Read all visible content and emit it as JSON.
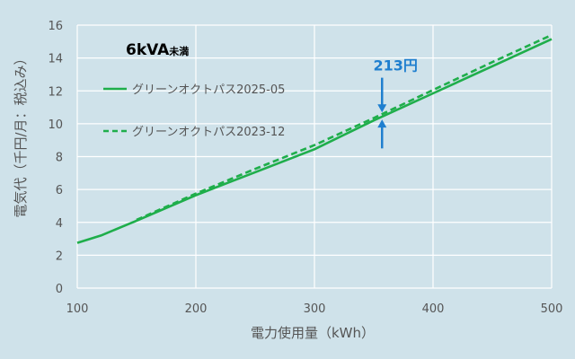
{
  "chart_data": {
    "type": "line",
    "title": "6kVA",
    "title_suffix": "未満",
    "xlabel": "電力使用量（kWh）",
    "ylabel": "電気代（千円/月：税込み）",
    "xlim": [
      100,
      500
    ],
    "ylim": [
      0,
      16
    ],
    "x_ticks": [
      100,
      200,
      300,
      400,
      500
    ],
    "y_ticks": [
      0,
      2,
      4,
      6,
      8,
      10,
      12,
      14,
      16
    ],
    "x_tick_labels": [
      "100",
      "200",
      "300",
      "400",
      "500"
    ],
    "y_tick_labels": [
      "0",
      "2",
      "4",
      "6",
      "8",
      "10",
      "12",
      "14",
      "16"
    ],
    "grid": true,
    "legend_position": "top-left",
    "series": [
      {
        "name": "グリーンオクトパス2025-05",
        "style": "solid",
        "color": "#1fae4b",
        "x": [
          100,
          120,
          150,
          200,
          250,
          300,
          350,
          400,
          450,
          500
        ],
        "y": [
          2.75,
          3.2,
          4.1,
          5.65,
          7.05,
          8.45,
          10.2,
          11.85,
          13.5,
          15.15
        ]
      },
      {
        "name": "グリーンオクトパス2023-12",
        "style": "dashed",
        "color": "#1fae4b",
        "x": [
          150,
          200,
          250,
          300,
          350,
          400,
          450,
          500
        ],
        "y": [
          4.15,
          5.75,
          7.25,
          8.7,
          10.35,
          12.05,
          13.75,
          15.4
        ]
      }
    ],
    "annotation": {
      "text": "213円",
      "x": 357,
      "color": "#1f7fcf",
      "arrow_top_y": 12.8,
      "arrow_bottom_y": 8.5,
      "upper_line_y": 10.58,
      "lower_line_y": 10.37
    }
  }
}
